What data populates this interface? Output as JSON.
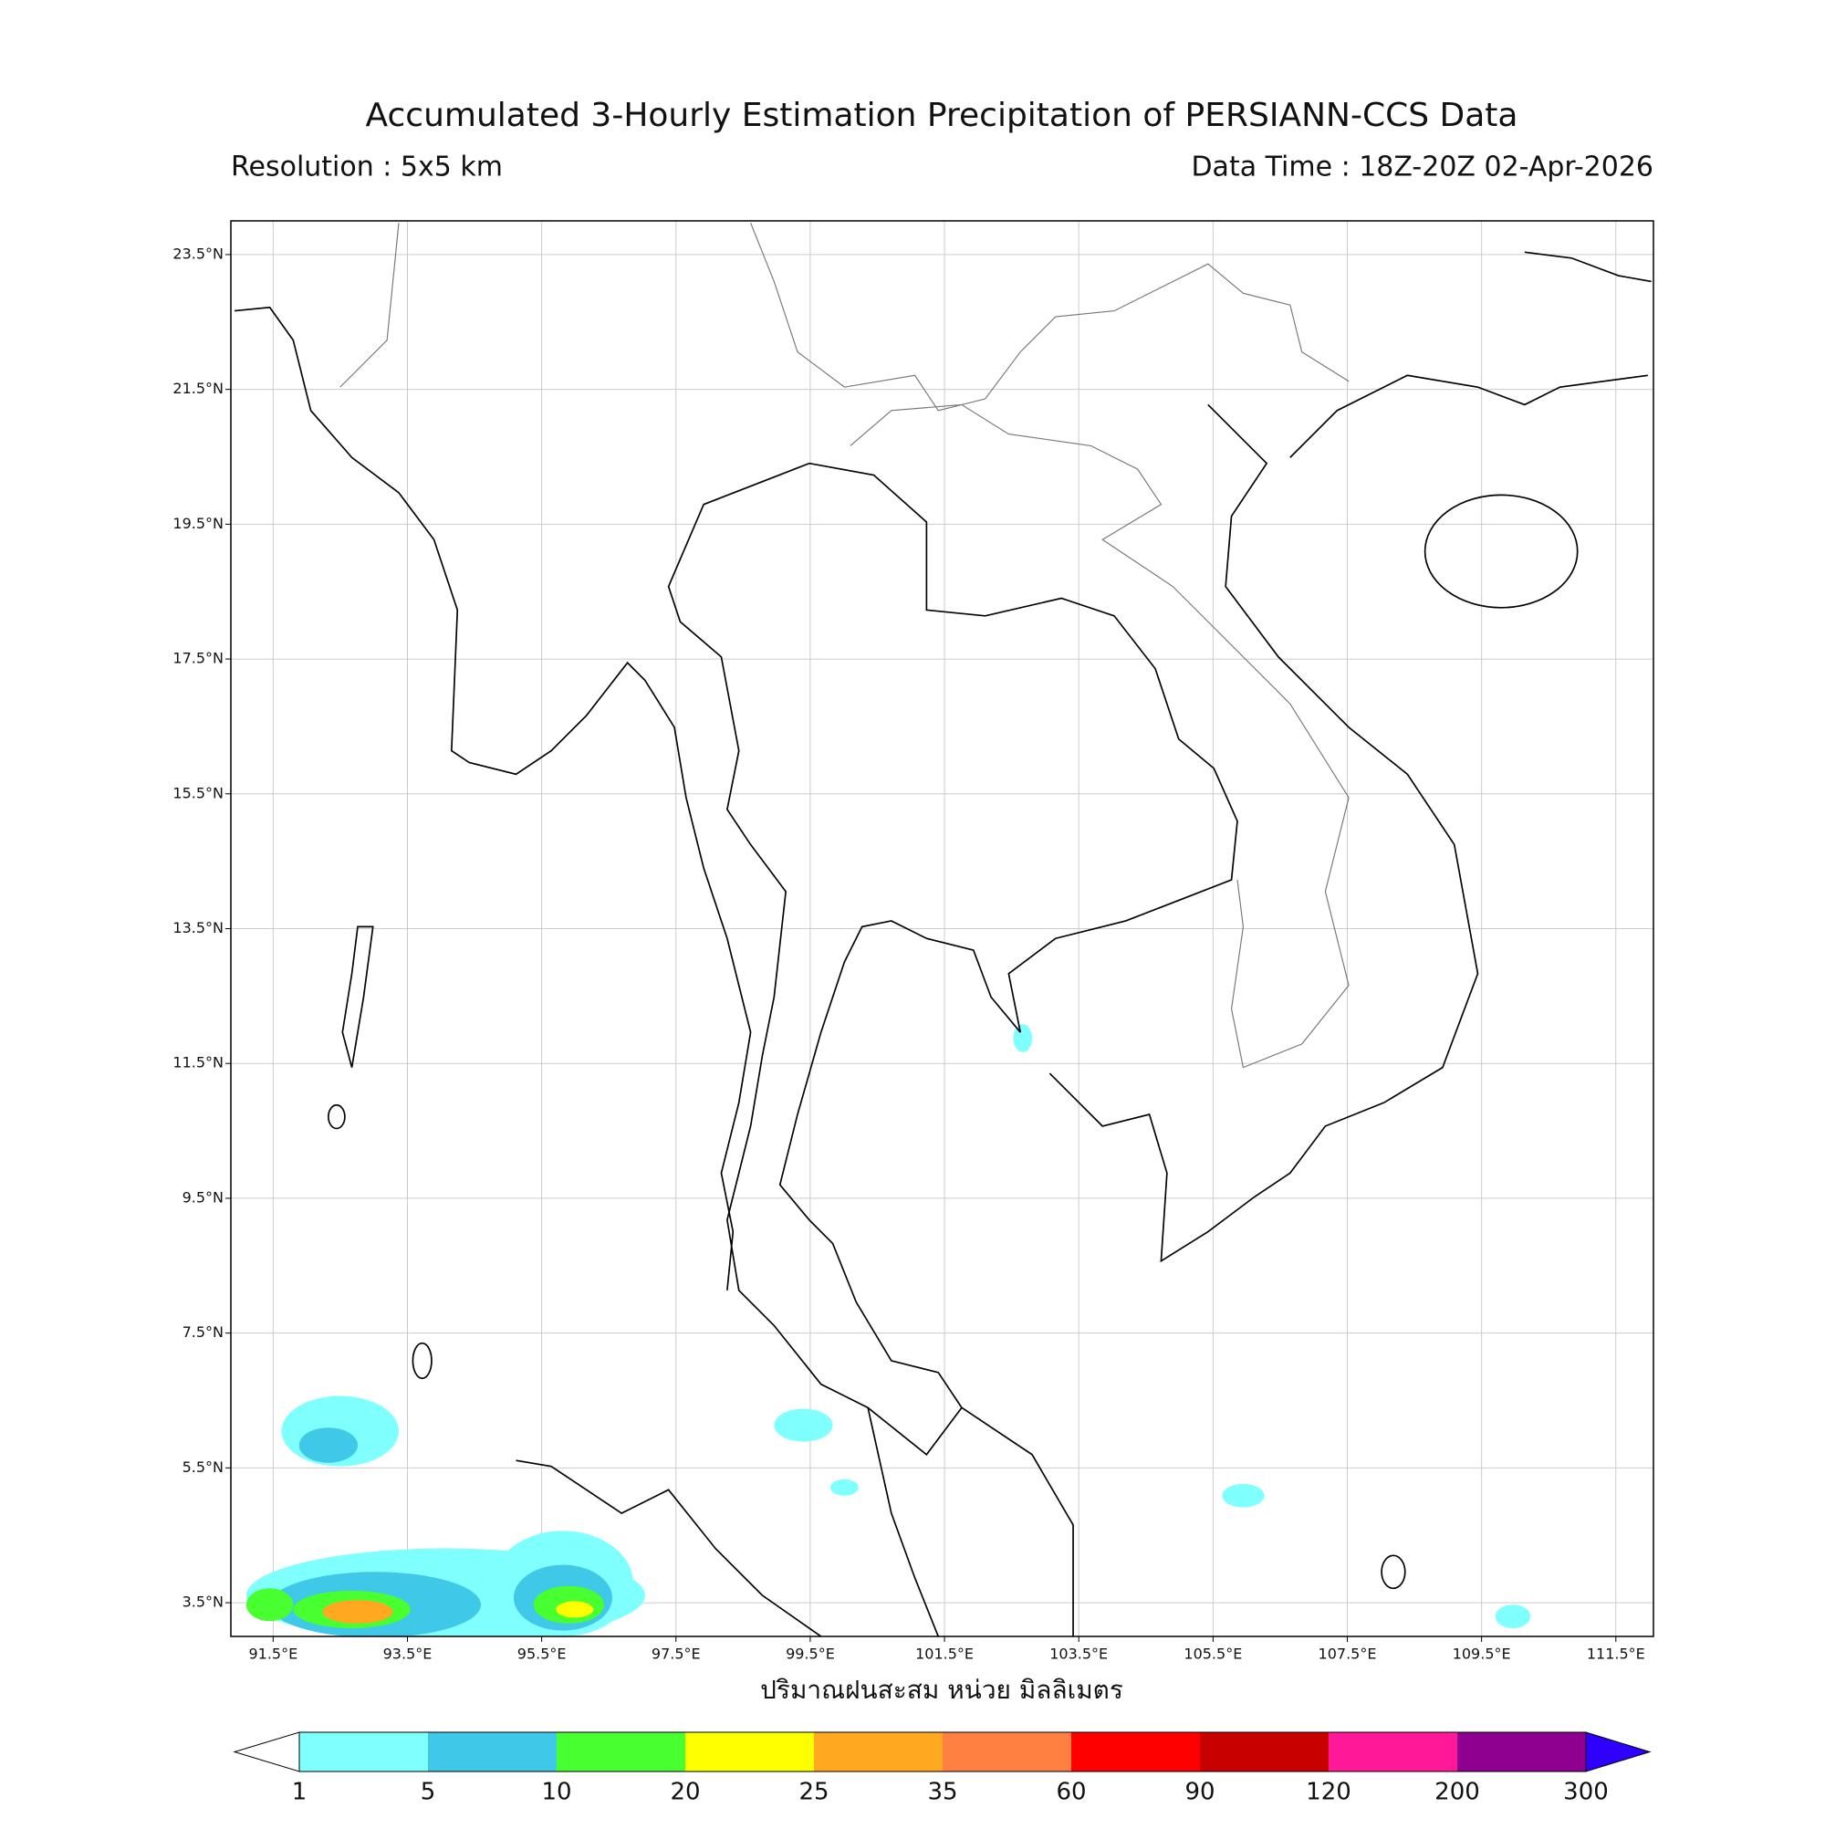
{
  "header": {
    "title": "Accumulated 3-Hourly Estimation Precipitation of PERSIANN-CCS Data",
    "resolution": "Resolution : 5x5 km",
    "data_time": "Data Time : 18Z-20Z 02-Apr-2026"
  },
  "map": {
    "lon_range": [
      90.87,
      112.06
    ],
    "lat_range": [
      3.0,
      24.0
    ],
    "grid": true,
    "lon_ticks": [
      {
        "value": 91.5,
        "label": "91.5°E"
      },
      {
        "value": 93.5,
        "label": "93.5°E"
      },
      {
        "value": 95.5,
        "label": "95.5°E"
      },
      {
        "value": 97.5,
        "label": "97.5°E"
      },
      {
        "value": 99.5,
        "label": "99.5°E"
      },
      {
        "value": 101.5,
        "label": "101.5°E"
      },
      {
        "value": 103.5,
        "label": "103.5°E"
      },
      {
        "value": 105.5,
        "label": "105.5°E"
      },
      {
        "value": 107.5,
        "label": "107.5°E"
      },
      {
        "value": 109.5,
        "label": "109.5°E"
      },
      {
        "value": 111.5,
        "label": "111.5°E"
      }
    ],
    "lat_ticks": [
      {
        "value": 3.5,
        "label": "3.5°N"
      },
      {
        "value": 5.5,
        "label": "5.5°N"
      },
      {
        "value": 7.5,
        "label": "7.5°N"
      },
      {
        "value": 9.5,
        "label": "9.5°N"
      },
      {
        "value": 11.5,
        "label": "11.5°N"
      },
      {
        "value": 13.5,
        "label": "13.5°N"
      },
      {
        "value": 15.5,
        "label": "15.5°N"
      },
      {
        "value": 17.5,
        "label": "17.5°N"
      },
      {
        "value": 19.5,
        "label": "19.5°N"
      },
      {
        "value": 21.5,
        "label": "21.5°N"
      },
      {
        "value": 23.5,
        "label": "23.5°N"
      }
    ],
    "x_label": "ปริมาณฝนสะสม หน่วย มิลลิเมตร"
  },
  "colorbar": {
    "levels": [
      1,
      5,
      10,
      20,
      25,
      35,
      60,
      90,
      120,
      200,
      300
    ],
    "colors": [
      "#80ffff",
      "#40c8e8",
      "#48ff30",
      "#ffff00",
      "#ffa820",
      "#ff8040",
      "#ff0000",
      "#c80000",
      "#ff1898",
      "#900090"
    ],
    "under_color": "#ffffff",
    "over_color": "#3000ff"
  }
}
